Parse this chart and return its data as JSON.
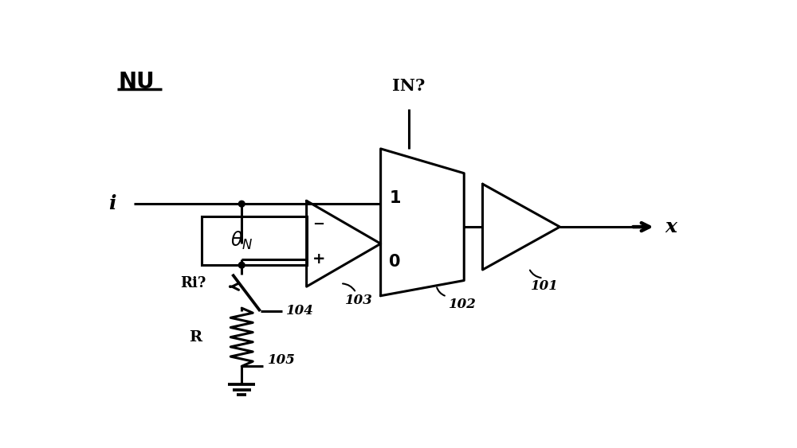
{
  "bg_color": "#ffffff",
  "line_color": "#000000",
  "lw": 2.2,
  "fig_width": 10.0,
  "fig_height": 5.63,
  "dpi": 100,
  "title": "NU",
  "label_i": "i",
  "label_x": "x",
  "label_IN": "IN?",
  "label_Ri": "Ri?",
  "label_R": "R",
  "label_103": "103",
  "label_102": "102",
  "label_101": "101",
  "label_104": "104",
  "label_105": "105",
  "label_1": "1",
  "label_0": "0",
  "label_plus": "+",
  "label_minus": "−"
}
